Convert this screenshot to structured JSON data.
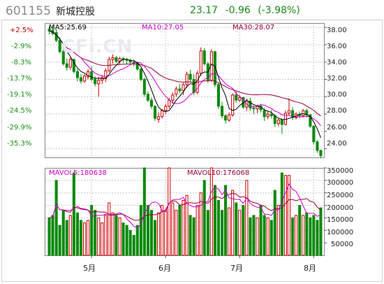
{
  "header": {
    "code": "601155",
    "name": "新城控股",
    "price": "23.17",
    "change": "-0.96",
    "change_pct": "(-3.98%)"
  },
  "watermark": "CFi.CN",
  "pct_axis": [
    "+2.5%",
    "-2.9%",
    "-8.3%",
    "-13.7%",
    "-19.1%",
    "-24.5%",
    "-29.9%",
    "-35.3%"
  ],
  "price_axis": [
    "38.00",
    "36.00",
    "34.00",
    "32.00",
    "30.00",
    "28.00",
    "26.00",
    "24.00"
  ],
  "vol_axis": [
    "350000",
    "300000",
    "250000",
    "200000",
    "150000",
    "100000",
    "50000"
  ],
  "ma": {
    "ma5": "MA5:25.69",
    "ma10": "MA10:27.05",
    "ma30": "MA30:28.07"
  },
  "vol_ma": {
    "mavol5": "MAVOL5:180638",
    "mavol10": "MAVOL10:176068"
  },
  "months": [
    "5月",
    "6月",
    "7月",
    "8月"
  ],
  "colors": {
    "up": "#cc0000",
    "down": "#0a8a0a",
    "ma5": "#000000",
    "ma10": "#cc00cc",
    "ma30": "#990033",
    "grid": "#c8c8c8",
    "frame": "#888888"
  },
  "chart_data": {
    "type": "candlestick",
    "price_range": [
      23,
      38.5
    ],
    "volume_range": [
      0,
      350000
    ],
    "candles": [
      [
        37.8,
        38.1,
        37.2,
        37.6,
        150000
      ],
      [
        37.7,
        38.3,
        37.1,
        37.3,
        160000
      ],
      [
        37.4,
        37.8,
        36.3,
        36.5,
        300000
      ],
      [
        36.5,
        36.9,
        35.0,
        35.2,
        120000
      ],
      [
        35.2,
        35.5,
        33.6,
        33.8,
        180000
      ],
      [
        33.8,
        34.4,
        33.0,
        33.4,
        140000
      ],
      [
        33.4,
        34.6,
        33.1,
        34.3,
        160000
      ],
      [
        34.3,
        34.4,
        32.7,
        32.9,
        330000
      ],
      [
        32.9,
        33.2,
        31.8,
        32.2,
        170000
      ],
      [
        32.2,
        32.6,
        31.5,
        31.8,
        140000
      ],
      [
        31.8,
        32.6,
        31.6,
        32.4,
        130000
      ],
      [
        32.3,
        33.2,
        32.0,
        32.9,
        140000
      ],
      [
        32.9,
        33.5,
        31.8,
        32.0,
        200000
      ],
      [
        32.0,
        32.4,
        31.2,
        31.5,
        180000
      ],
      [
        31.5,
        32.3,
        30.0,
        31.9,
        150000
      ],
      [
        31.9,
        32.5,
        31.5,
        32.2,
        130000
      ],
      [
        32.1,
        33.3,
        31.7,
        33.0,
        160000
      ],
      [
        33.0,
        34.6,
        32.8,
        34.3,
        210000
      ],
      [
        34.3,
        34.9,
        33.8,
        34.5,
        170000
      ],
      [
        34.5,
        34.7,
        33.9,
        34.1,
        160000
      ],
      [
        34.1,
        34.6,
        33.7,
        34.4,
        150000
      ],
      [
        34.4,
        34.6,
        33.9,
        34.3,
        130000
      ],
      [
        34.3,
        34.5,
        33.8,
        34.2,
        120000
      ],
      [
        34.2,
        34.4,
        33.8,
        34.0,
        100000
      ],
      [
        34.0,
        34.3,
        33.5,
        33.9,
        80000
      ],
      [
        33.9,
        34.0,
        33.0,
        33.2,
        120000
      ],
      [
        33.2,
        33.3,
        31.8,
        32.0,
        200000
      ],
      [
        32.0,
        32.2,
        30.0,
        30.3,
        350000
      ],
      [
        30.3,
        30.6,
        29.4,
        29.6,
        200000
      ],
      [
        29.6,
        29.9,
        28.6,
        28.9,
        180000
      ],
      [
        28.9,
        29.0,
        27.2,
        27.5,
        140000
      ],
      [
        27.4,
        28.2,
        27.0,
        27.7,
        170000
      ],
      [
        27.7,
        28.6,
        27.5,
        28.4,
        200000
      ],
      [
        28.4,
        29.2,
        28.0,
        28.9,
        180000
      ],
      [
        28.9,
        29.9,
        28.6,
        29.6,
        350000
      ],
      [
        29.6,
        30.5,
        29.2,
        30.2,
        210000
      ],
      [
        30.3,
        31.2,
        30.0,
        30.9,
        180000
      ],
      [
        30.9,
        31.5,
        30.4,
        30.7,
        200000
      ],
      [
        30.7,
        31.6,
        30.2,
        31.4,
        220000
      ],
      [
        31.4,
        32.9,
        31.0,
        32.6,
        240000
      ],
      [
        32.6,
        33.1,
        31.7,
        32.0,
        160000
      ],
      [
        32.0,
        32.6,
        30.2,
        30.5,
        150000
      ],
      [
        30.5,
        33.0,
        30.3,
        32.7,
        200000
      ],
      [
        32.7,
        35.7,
        32.4,
        35.3,
        250000
      ],
      [
        35.3,
        35.6,
        33.6,
        33.8,
        300000
      ],
      [
        33.8,
        34.0,
        31.6,
        31.9,
        180000
      ],
      [
        31.9,
        35.5,
        31.7,
        35.2,
        350000
      ],
      [
        35.2,
        35.3,
        31.1,
        31.4,
        280000
      ],
      [
        31.4,
        31.6,
        28.6,
        28.9,
        220000
      ],
      [
        28.9,
        29.4,
        27.5,
        27.8,
        180000
      ],
      [
        27.8,
        28.0,
        26.9,
        27.3,
        280000
      ],
      [
        27.3,
        28.2,
        27.1,
        27.9,
        190000
      ],
      [
        27.9,
        30.4,
        27.7,
        30.2,
        260000
      ],
      [
        30.2,
        30.6,
        29.3,
        29.6,
        210000
      ],
      [
        29.6,
        30.2,
        29.4,
        29.9,
        180000
      ],
      [
        29.9,
        30.0,
        28.6,
        28.8,
        200000
      ],
      [
        28.8,
        29.8,
        28.4,
        29.5,
        300000
      ],
      [
        29.5,
        29.9,
        28.4,
        28.7,
        150000
      ],
      [
        28.7,
        29.0,
        28.0,
        28.6,
        160000
      ],
      [
        28.6,
        29.1,
        28.1,
        28.9,
        150000
      ],
      [
        28.9,
        29.2,
        28.2,
        28.5,
        200000
      ],
      [
        28.4,
        28.7,
        27.2,
        27.7,
        160000
      ],
      [
        27.7,
        28.3,
        27.4,
        28.0,
        150000
      ],
      [
        28.0,
        28.5,
        27.5,
        27.8,
        140000
      ],
      [
        27.8,
        28.0,
        26.5,
        26.9,
        260000
      ],
      [
        26.9,
        27.5,
        26.6,
        27.3,
        200000
      ],
      [
        27.3,
        27.5,
        25.7,
        26.8,
        330000
      ],
      [
        26.8,
        28.4,
        26.7,
        28.1,
        320000
      ],
      [
        28.1,
        29.8,
        27.8,
        28.4,
        320000
      ],
      [
        28.4,
        28.8,
        27.3,
        27.6,
        150000
      ],
      [
        27.6,
        28.2,
        27.4,
        28.0,
        160000
      ],
      [
        28.0,
        28.3,
        27.5,
        27.8,
        200000
      ],
      [
        27.8,
        28.6,
        27.6,
        28.4,
        160000
      ],
      [
        28.4,
        28.6,
        27.6,
        27.9,
        170000
      ],
      [
        27.9,
        28.0,
        26.4,
        26.6,
        150000
      ],
      [
        26.6,
        26.7,
        24.5,
        24.8,
        160000
      ],
      [
        24.8,
        25.0,
        23.5,
        23.8,
        140000
      ],
      [
        23.8,
        23.9,
        22.9,
        23.2,
        190000
      ]
    ]
  }
}
